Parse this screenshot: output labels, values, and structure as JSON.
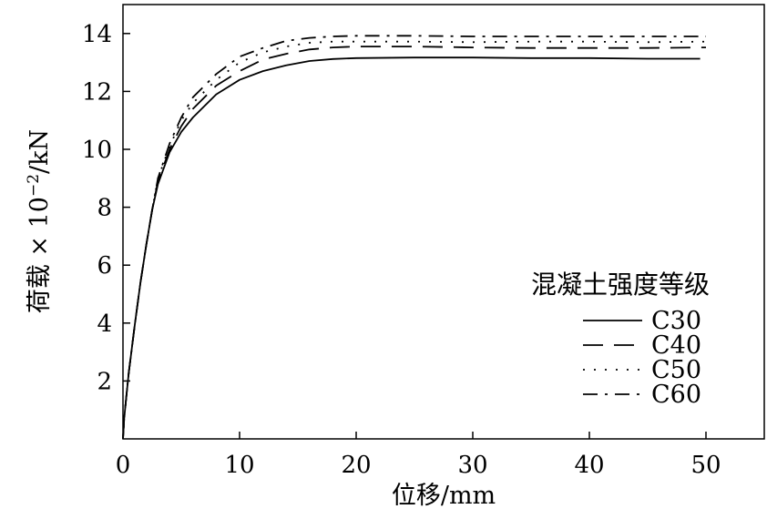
{
  "chart_data": {
    "type": "line",
    "title": "",
    "xlabel": "位移/mm",
    "ylabel_prefix": "荷载 × 10",
    "ylabel_exp": "−2",
    "ylabel_suffix": "/kN",
    "xlim": [
      0,
      55
    ],
    "ylim": [
      0,
      15
    ],
    "x_ticks": [
      0,
      10,
      20,
      30,
      40,
      50
    ],
    "y_ticks": [
      2,
      4,
      6,
      8,
      10,
      12,
      14
    ],
    "grid": false,
    "legend": {
      "title": "混凝土强度等级",
      "position": "bottom-right"
    },
    "series": [
      {
        "name": "C30",
        "dash": "solid",
        "x": [
          0,
          0.1,
          0.3,
          0.5,
          1,
          1.5,
          2,
          2.5,
          3,
          4,
          5,
          6,
          8,
          10,
          12,
          14,
          16,
          18,
          20,
          25,
          30,
          35,
          40,
          45,
          49.5
        ],
        "y": [
          0,
          0.7,
          1.5,
          2.3,
          3.9,
          5.4,
          6.7,
          7.9,
          8.8,
          9.9,
          10.6,
          11.1,
          11.9,
          12.4,
          12.7,
          12.9,
          13.05,
          13.12,
          13.15,
          13.17,
          13.17,
          13.15,
          13.15,
          13.13,
          13.13
        ]
      },
      {
        "name": "C40",
        "dash": "long",
        "x": [
          0,
          0.1,
          0.3,
          0.5,
          1,
          1.5,
          2,
          2.5,
          3,
          4,
          5,
          6,
          8,
          10,
          12,
          14,
          16,
          18,
          20,
          25,
          30,
          35,
          40,
          45,
          50
        ],
        "y": [
          0,
          0.7,
          1.5,
          2.3,
          3.9,
          5.4,
          6.7,
          7.9,
          8.9,
          10.0,
          10.8,
          11.4,
          12.2,
          12.7,
          13.1,
          13.3,
          13.45,
          13.52,
          13.55,
          13.55,
          13.52,
          13.5,
          13.5,
          13.5,
          13.52
        ]
      },
      {
        "name": "C50",
        "dash": "dot",
        "x": [
          0,
          0.1,
          0.3,
          0.5,
          1,
          1.5,
          2,
          2.5,
          3,
          4,
          5,
          6,
          8,
          10,
          12,
          14,
          16,
          18,
          20,
          25,
          30,
          35,
          40,
          45,
          50
        ],
        "y": [
          0,
          0.7,
          1.5,
          2.3,
          3.9,
          5.4,
          6.7,
          7.9,
          9.0,
          10.1,
          11.0,
          11.6,
          12.4,
          13.0,
          13.35,
          13.55,
          13.68,
          13.72,
          13.72,
          13.72,
          13.7,
          13.72,
          13.72,
          13.7,
          13.72
        ]
      },
      {
        "name": "C60",
        "dash": "dashdot",
        "x": [
          0,
          0.1,
          0.3,
          0.5,
          1,
          1.5,
          2,
          2.5,
          3,
          4,
          5,
          6,
          8,
          10,
          12,
          14,
          16,
          18,
          20,
          25,
          30,
          35,
          40,
          45,
          50
        ],
        "y": [
          0,
          0.7,
          1.5,
          2.3,
          3.9,
          5.4,
          6.7,
          7.9,
          9.0,
          10.2,
          11.1,
          11.8,
          12.6,
          13.2,
          13.5,
          13.75,
          13.85,
          13.9,
          13.92,
          13.92,
          13.9,
          13.9,
          13.9,
          13.9,
          13.9
        ]
      }
    ]
  }
}
